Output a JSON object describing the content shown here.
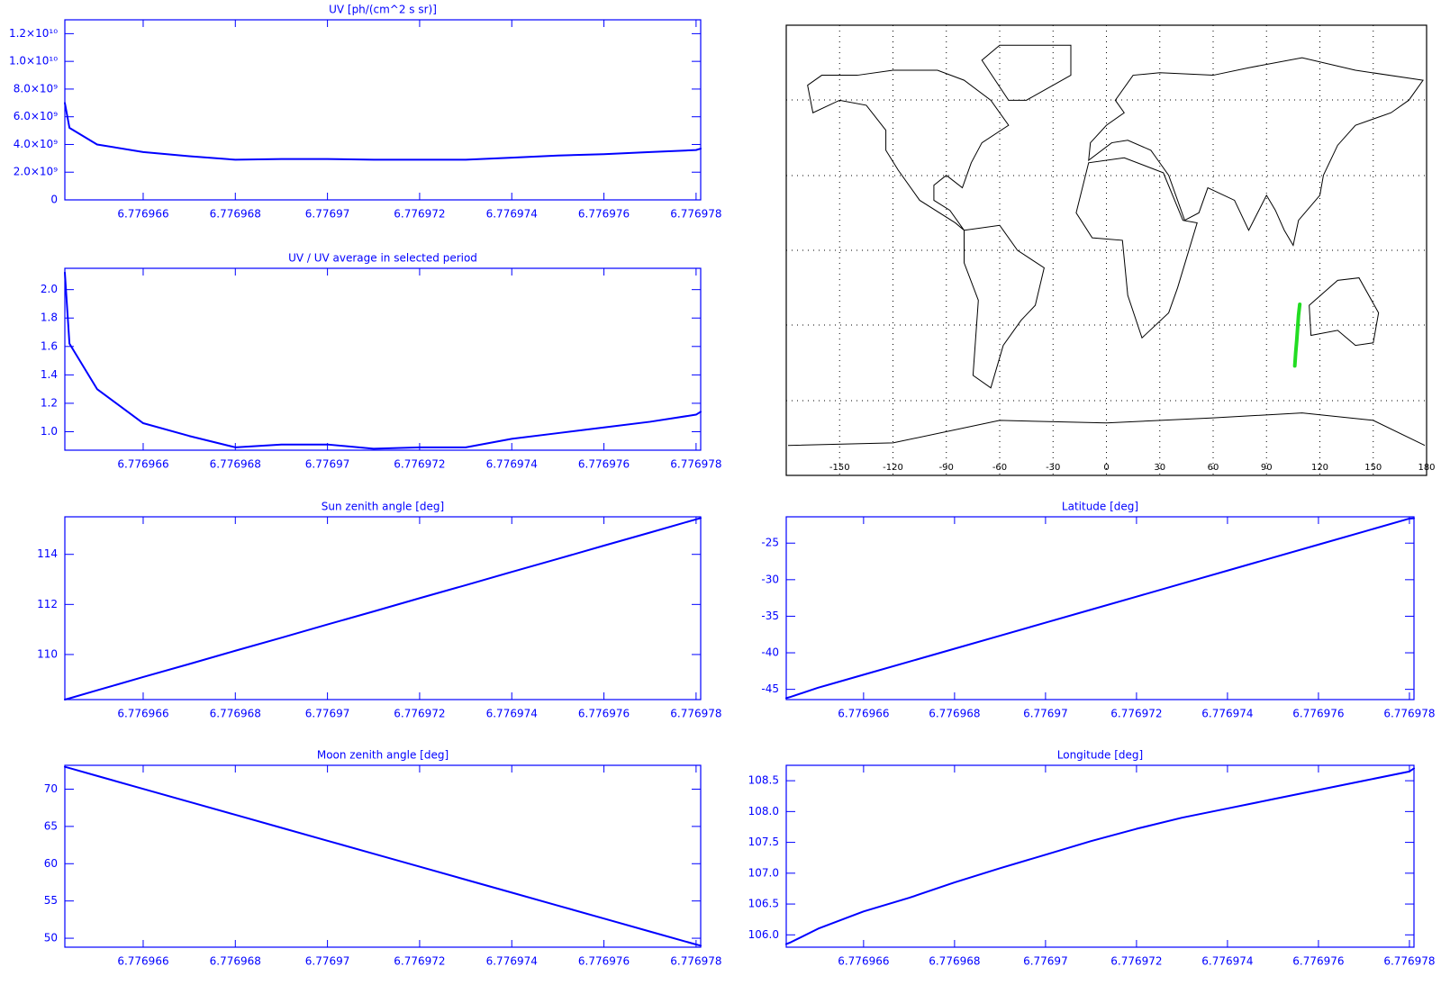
{
  "chart_data": [
    {
      "type": "line",
      "title": "UV [ph/(cm^2 s sr)]",
      "x": [
        6.7769643,
        6.7769644,
        6.776965,
        6.776966,
        6.776967,
        6.776968,
        6.776969,
        6.77697,
        6.776971,
        6.776972,
        6.776973,
        6.776974,
        6.776975,
        6.776976,
        6.776977,
        6.776978,
        6.7769781
      ],
      "series": [
        {
          "color": "#0000ff",
          "values": [
            7000000000,
            5200000000,
            4000000000,
            3450000000,
            3150000000,
            2900000000,
            2950000000,
            2950000000,
            2900000000,
            2900000000,
            2900000000,
            3050000000,
            3200000000,
            3300000000,
            3450000000,
            3600000000,
            3700000000
          ]
        }
      ],
      "xlim": [
        6.7769643,
        6.7769781
      ],
      "xticks": [
        6.776966,
        6.776968,
        6.77697,
        6.776972,
        6.776974,
        6.776976,
        6.776978
      ],
      "ylim": [
        0,
        13000000000
      ],
      "yticks": [
        0,
        {
          "value": 2000000000,
          "label": "2.0×10⁹"
        },
        {
          "value": 4000000000,
          "label": "4.0×10⁹"
        },
        {
          "value": 6000000000,
          "label": "6.0×10⁹"
        },
        {
          "value": 8000000000,
          "label": "8.0×10⁹"
        },
        {
          "value": 10000000000,
          "label": "1.0×10¹⁰"
        },
        {
          "value": 12000000000,
          "label": "1.2×10¹⁰"
        }
      ]
    },
    {
      "type": "line",
      "title": "UV / UV average in selected period",
      "x": [
        6.7769643,
        6.7769644,
        6.776965,
        6.776966,
        6.776967,
        6.776968,
        6.776969,
        6.77697,
        6.776971,
        6.776972,
        6.776973,
        6.776974,
        6.776975,
        6.776976,
        6.776977,
        6.776978,
        6.7769781
      ],
      "series": [
        {
          "color": "#0000ff",
          "values": [
            2.12,
            1.62,
            1.3,
            1.06,
            0.97,
            0.89,
            0.91,
            0.91,
            0.88,
            0.89,
            0.89,
            0.95,
            0.99,
            1.03,
            1.07,
            1.12,
            1.14
          ]
        }
      ],
      "xlim": [
        6.7769643,
        6.7769781
      ],
      "xticks": [
        6.776966,
        6.776968,
        6.77697,
        6.776972,
        6.776974,
        6.776976,
        6.776978
      ],
      "ylim": [
        0.87,
        2.15
      ],
      "yticks": [
        {
          "value": 1,
          "label": "1.0"
        },
        1.2,
        1.4,
        1.6,
        1.8,
        {
          "value": 2,
          "label": "2.0"
        }
      ]
    },
    {
      "type": "line",
      "title": "Sun zenith angle [deg]",
      "x": [
        6.7769643,
        6.7769644,
        6.776965,
        6.776966,
        6.776967,
        6.776968,
        6.776969,
        6.77697,
        6.776971,
        6.776972,
        6.776973,
        6.776974,
        6.776975,
        6.776976,
        6.776977,
        6.776978,
        6.7769781
      ],
      "series": [
        {
          "color": "#0000ff",
          "values": [
            108.2,
            108.25,
            108.57,
            109.1,
            109.62,
            110.15,
            110.67,
            111.2,
            111.72,
            112.25,
            112.77,
            113.3,
            113.82,
            114.35,
            114.87,
            115.4,
            115.45
          ]
        }
      ],
      "xlim": [
        6.7769643,
        6.7769781
      ],
      "xticks": [
        6.776966,
        6.776968,
        6.77697,
        6.776972,
        6.776974,
        6.776976,
        6.776978
      ],
      "ylim": [
        108.2,
        115.5
      ],
      "yticks": [
        110,
        112,
        114
      ]
    },
    {
      "type": "line",
      "title": "Moon zenith angle [deg]",
      "x": [
        6.7769643,
        6.7769644,
        6.776965,
        6.776966,
        6.776967,
        6.776968,
        6.776969,
        6.77697,
        6.776971,
        6.776972,
        6.776973,
        6.776974,
        6.776975,
        6.776976,
        6.776977,
        6.776978,
        6.7769781
      ],
      "series": [
        {
          "color": "#0000ff",
          "values": [
            73.0,
            72.83,
            71.78,
            70.04,
            68.3,
            66.56,
            64.82,
            63.08,
            61.34,
            59.6,
            57.86,
            56.12,
            54.38,
            52.64,
            50.9,
            49.16,
            49.0
          ]
        }
      ],
      "xlim": [
        6.7769643,
        6.7769781
      ],
      "xticks": [
        6.776966,
        6.776968,
        6.77697,
        6.776972,
        6.776974,
        6.776976,
        6.776978
      ],
      "ylim": [
        48.8,
        73.2
      ],
      "yticks": [
        50,
        55,
        60,
        65,
        70
      ]
    },
    {
      "type": "line",
      "title": "Latitude [deg]",
      "x": [
        6.7769643,
        6.7769644,
        6.776965,
        6.776966,
        6.776967,
        6.776968,
        6.776969,
        6.77697,
        6.776971,
        6.776972,
        6.776973,
        6.776974,
        6.776975,
        6.776976,
        6.776977,
        6.776978,
        6.7769781
      ],
      "series": [
        {
          "color": "#0000ff",
          "values": [
            -46.2,
            -46.02,
            -44.78,
            -43.0,
            -41.22,
            -39.44,
            -37.66,
            -35.88,
            -34.1,
            -32.32,
            -30.54,
            -28.76,
            -26.98,
            -25.2,
            -23.42,
            -21.64,
            -21.6
          ]
        }
      ],
      "xlim": [
        6.7769643,
        6.7769781
      ],
      "xticks": [
        6.776966,
        6.776968,
        6.77697,
        6.776972,
        6.776974,
        6.776976,
        6.776978
      ],
      "ylim": [
        -46.4,
        -21.4
      ],
      "yticks": [
        -45,
        -40,
        -35,
        -30,
        -25
      ]
    },
    {
      "type": "line",
      "title": "Longitude [deg]",
      "x": [
        6.7769643,
        6.7769644,
        6.776965,
        6.776966,
        6.776967,
        6.776968,
        6.776969,
        6.77697,
        6.776971,
        6.776972,
        6.776973,
        6.776974,
        6.776975,
        6.776976,
        6.776977,
        6.776978,
        6.7769781
      ],
      "series": [
        {
          "color": "#0000ff",
          "values": [
            105.85,
            105.88,
            106.1,
            106.38,
            106.6,
            106.85,
            107.08,
            107.3,
            107.52,
            107.72,
            107.9,
            108.05,
            108.2,
            108.35,
            108.5,
            108.65,
            108.7
          ]
        }
      ],
      "xlim": [
        6.7769643,
        6.7769781
      ],
      "xticks": [
        6.776966,
        6.776968,
        6.77697,
        6.776972,
        6.776974,
        6.776976,
        6.776978
      ],
      "ylim": [
        105.8,
        108.75
      ],
      "yticks": [
        {
          "value": 106,
          "label": "106.0"
        },
        106.5,
        {
          "value": 107,
          "label": "107.0"
        },
        107.5,
        {
          "value": 108,
          "label": "108.0"
        },
        108.5
      ]
    },
    {
      "type": "map",
      "x": [
        105.9,
        106.4,
        107.0,
        107.5,
        108.0,
        108.7
      ],
      "series": [
        {
          "color": "#22dd22",
          "values": [
            -46.2,
            -41,
            -36,
            -31,
            -26,
            -21.6
          ]
        }
      ],
      "xlim": [
        -180,
        180
      ],
      "ylim": [
        -90,
        90
      ],
      "xticks": [
        -150,
        -120,
        -90,
        -60,
        -30,
        0,
        30,
        60,
        90,
        120,
        150,
        180
      ],
      "grid": true
    }
  ]
}
